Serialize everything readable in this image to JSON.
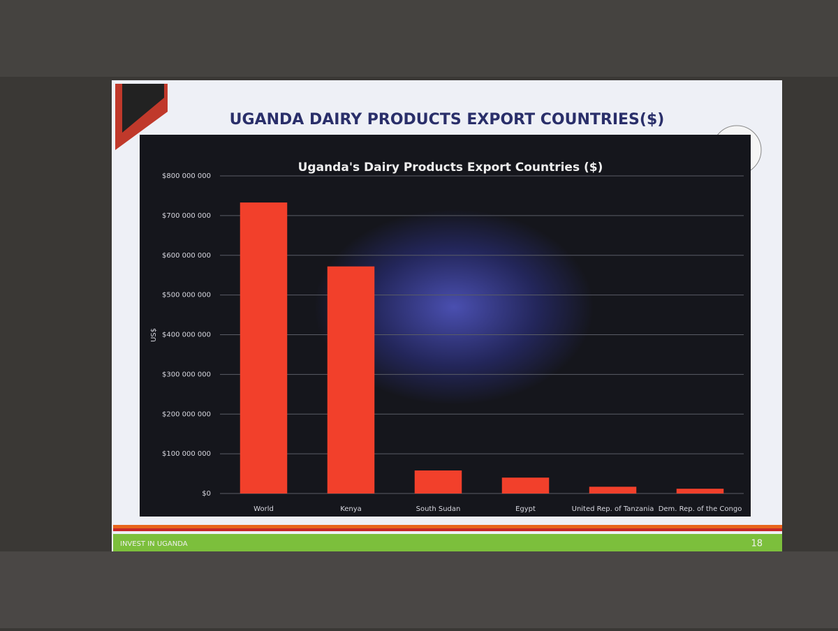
{
  "slide": {
    "title": "UGANDA DAIRY PRODUCTS EXPORT COUNTRIES($)",
    "footer": "INVEST IN UGANDA",
    "page_number": "18"
  },
  "chart_data": {
    "type": "bar",
    "title": "Uganda's Dairy Products Export Countries ($)",
    "y_label": "US$",
    "categories": [
      "World",
      "Kenya",
      "South Sudan",
      "Egypt",
      "United Rep. of Tanzania",
      "Dem. Rep. of the Congo"
    ],
    "values": [
      733000000,
      572000000,
      58000000,
      40000000,
      17000000,
      12000000
    ],
    "color": "#f2402b",
    "ylim": [
      0,
      800000000
    ],
    "yticks": [
      {
        "value": 0,
        "label": "$0"
      },
      {
        "value": 100000000,
        "label": "$100 000 000"
      },
      {
        "value": 200000000,
        "label": "$200 000 000"
      },
      {
        "value": 300000000,
        "label": "$300 000 000"
      },
      {
        "value": 400000000,
        "label": "$400 000 000"
      },
      {
        "value": 500000000,
        "label": "$500 000 000"
      },
      {
        "value": 600000000,
        "label": "$600 000 000"
      },
      {
        "value": 700000000,
        "label": "$700 000 000"
      },
      {
        "value": 800000000,
        "label": "$800 000 000"
      }
    ],
    "grid": true
  }
}
